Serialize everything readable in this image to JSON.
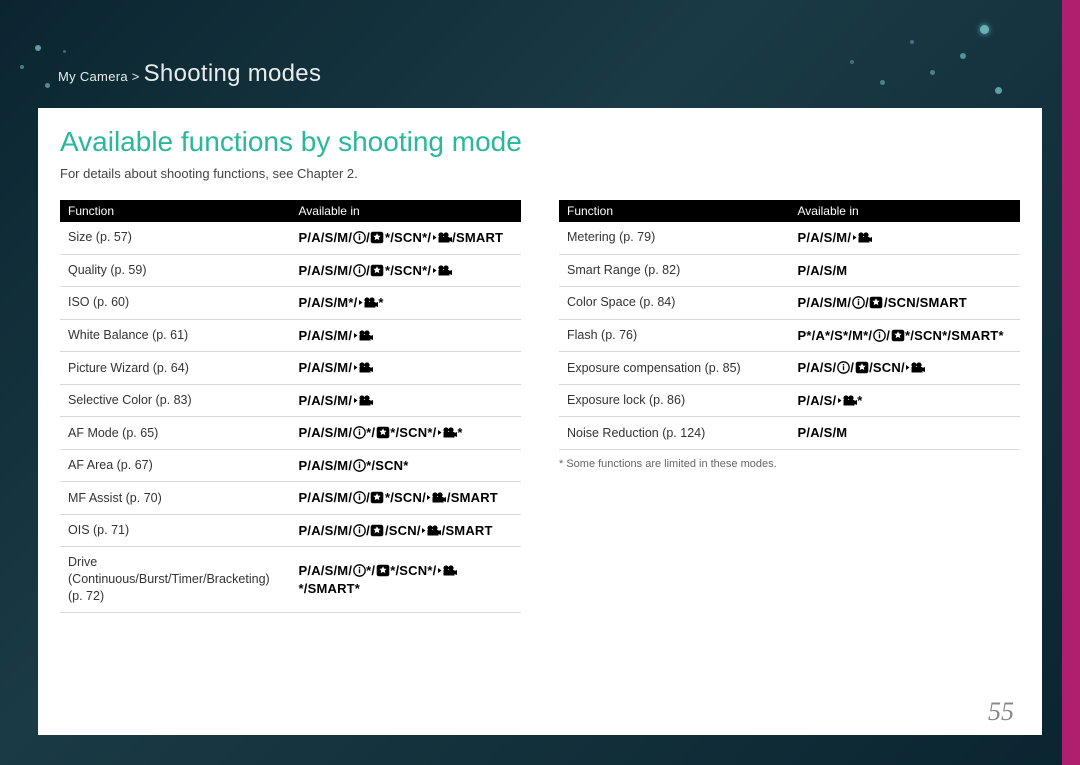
{
  "breadcrumb": {
    "prefix": "My Camera >",
    "section": "Shooting modes"
  },
  "title": "Available functions by shooting mode",
  "subtitle": "For details about shooting functions, see Chapter 2.",
  "table_header": {
    "col1": "Function",
    "col2": "Available in"
  },
  "icons": {
    "lens": "lens-priority-icon",
    "magic": "magic-frame-icon",
    "video": "movie-icon",
    "recvideo": "rec-movie-icon"
  },
  "left_table": [
    {
      "fn": "Size (p. 57)",
      "modes": [
        [
          "P"
        ],
        "/",
        [
          "A"
        ],
        "/",
        [
          "S"
        ],
        "/",
        [
          "M"
        ],
        "/",
        [
          "icon",
          "lens"
        ],
        "/",
        [
          "icon",
          "magic"
        ],
        "*/",
        [
          "SCN"
        ],
        "*/",
        [
          "icon",
          "recvideo"
        ],
        "/",
        [
          "SMART"
        ]
      ]
    },
    {
      "fn": "Quality (p. 59)",
      "modes": [
        [
          "P"
        ],
        "/",
        [
          "A"
        ],
        "/",
        [
          "S"
        ],
        "/",
        [
          "M"
        ],
        "/",
        [
          "icon",
          "lens"
        ],
        "/",
        [
          "icon",
          "magic"
        ],
        "*/",
        [
          "SCN"
        ],
        "*/",
        [
          "icon",
          "recvideo"
        ]
      ]
    },
    {
      "fn": "ISO (p. 60)",
      "modes": [
        [
          "P"
        ],
        "/",
        [
          "A"
        ],
        "/",
        [
          "S"
        ],
        "/",
        [
          "M"
        ],
        "*/",
        [
          "icon",
          "recvideo"
        ],
        "*"
      ]
    },
    {
      "fn": "White Balance (p. 61)",
      "modes": [
        [
          "P"
        ],
        "/",
        [
          "A"
        ],
        "/",
        [
          "S"
        ],
        "/",
        [
          "M"
        ],
        "/",
        [
          "icon",
          "recvideo"
        ]
      ]
    },
    {
      "fn": "Picture Wizard (p. 64)",
      "modes": [
        [
          "P"
        ],
        "/",
        [
          "A"
        ],
        "/",
        [
          "S"
        ],
        "/",
        [
          "M"
        ],
        "/",
        [
          "icon",
          "recvideo"
        ]
      ]
    },
    {
      "fn": "Selective Color (p. 83)",
      "modes": [
        [
          "P"
        ],
        "/",
        [
          "A"
        ],
        "/",
        [
          "S"
        ],
        "/",
        [
          "M"
        ],
        "/",
        [
          "icon",
          "recvideo"
        ]
      ]
    },
    {
      "fn": "AF Mode (p. 65)",
      "modes": [
        [
          "P"
        ],
        "/",
        [
          "A"
        ],
        "/",
        [
          "S"
        ],
        "/",
        [
          "M"
        ],
        "/",
        [
          "icon",
          "lens"
        ],
        "*/",
        [
          "icon",
          "magic"
        ],
        "*/",
        [
          "SCN"
        ],
        "*/",
        [
          "icon",
          "recvideo"
        ],
        "*"
      ]
    },
    {
      "fn": "AF Area (p. 67)",
      "modes": [
        [
          "P"
        ],
        "/",
        [
          "A"
        ],
        "/",
        [
          "S"
        ],
        "/",
        [
          "M"
        ],
        "/",
        [
          "icon",
          "lens"
        ],
        "*/",
        [
          "SCN"
        ],
        "*"
      ]
    },
    {
      "fn": "MF Assist (p. 70)",
      "modes": [
        [
          "P"
        ],
        "/",
        [
          "A"
        ],
        "/",
        [
          "S"
        ],
        "/",
        [
          "M"
        ],
        "/",
        [
          "icon",
          "lens"
        ],
        "/",
        [
          "icon",
          "magic"
        ],
        "*/",
        [
          "SCN"
        ],
        "/",
        [
          "icon",
          "recvideo"
        ],
        "/",
        [
          "SMART"
        ]
      ]
    },
    {
      "fn": "OIS (p. 71)",
      "modes": [
        [
          "P"
        ],
        "/",
        [
          "A"
        ],
        "/",
        [
          "S"
        ],
        "/",
        [
          "M"
        ],
        "/",
        [
          "icon",
          "lens"
        ],
        "/",
        [
          "icon",
          "magic"
        ],
        "/",
        [
          "SCN"
        ],
        "/",
        [
          "icon",
          "recvideo"
        ],
        "/",
        [
          "SMART"
        ]
      ]
    },
    {
      "fn": "Drive (Continuous/Burst/Timer/Bracketing) (p. 72)",
      "modes": [
        [
          "P"
        ],
        "/",
        [
          "A"
        ],
        "/",
        [
          "S"
        ],
        "/",
        [
          "M"
        ],
        "/",
        [
          "icon",
          "lens"
        ],
        "*/",
        [
          "icon",
          "magic"
        ],
        "*/",
        [
          "SCN"
        ],
        "*/",
        [
          "icon",
          "recvideo"
        ],
        "*/",
        [
          "SMART"
        ],
        "*"
      ]
    }
  ],
  "right_table": [
    {
      "fn": "Metering (p. 79)",
      "modes": [
        [
          "P"
        ],
        "/",
        [
          "A"
        ],
        "/",
        [
          "S"
        ],
        "/",
        [
          "M"
        ],
        "/",
        [
          "icon",
          "recvideo"
        ]
      ]
    },
    {
      "fn": "Smart Range (p. 82)",
      "modes": [
        [
          "P"
        ],
        "/",
        [
          "A"
        ],
        "/",
        [
          "S"
        ],
        "/",
        [
          "M"
        ]
      ]
    },
    {
      "fn": "Color Space (p. 84)",
      "modes": [
        [
          "P"
        ],
        "/",
        [
          "A"
        ],
        "/",
        [
          "S"
        ],
        "/",
        [
          "M"
        ],
        "/",
        [
          "icon",
          "lens"
        ],
        "/",
        [
          "icon",
          "magic"
        ],
        "/",
        [
          "SCN"
        ],
        "/",
        [
          "SMART"
        ]
      ]
    },
    {
      "fn": "Flash (p. 76)",
      "modes": [
        [
          "P"
        ],
        "*/",
        [
          "A"
        ],
        "*/",
        [
          "S"
        ],
        "*/",
        [
          "M"
        ],
        "*/",
        [
          "icon",
          "lens"
        ],
        "/",
        [
          "icon",
          "magic"
        ],
        "*/",
        [
          "SCN"
        ],
        "*/",
        [
          "SMART"
        ],
        "*"
      ]
    },
    {
      "fn": "Exposure compensation (p. 85)",
      "modes": [
        [
          "P"
        ],
        "/",
        [
          "A"
        ],
        "/",
        [
          "S"
        ],
        "/",
        [
          "icon",
          "lens"
        ],
        "/",
        [
          "icon",
          "magic"
        ],
        "/",
        [
          "SCN"
        ],
        "/",
        [
          "icon",
          "recvideo"
        ]
      ]
    },
    {
      "fn": "Exposure lock (p. 86)",
      "modes": [
        [
          "P"
        ],
        "/",
        [
          "A"
        ],
        "/",
        [
          "S"
        ],
        "/",
        [
          "icon",
          "recvideo"
        ],
        "*"
      ]
    },
    {
      "fn": "Noise Reduction (p. 124)",
      "modes": [
        [
          "P"
        ],
        "/",
        [
          "A"
        ],
        "/",
        [
          "S"
        ],
        "/",
        [
          "M"
        ]
      ]
    }
  ],
  "footnote": "* Some functions are limited in these modes.",
  "page_number": "55",
  "style": {
    "accent": "#b01e6e",
    "title_color": "#29b89b",
    "header_bg": "#000000"
  }
}
